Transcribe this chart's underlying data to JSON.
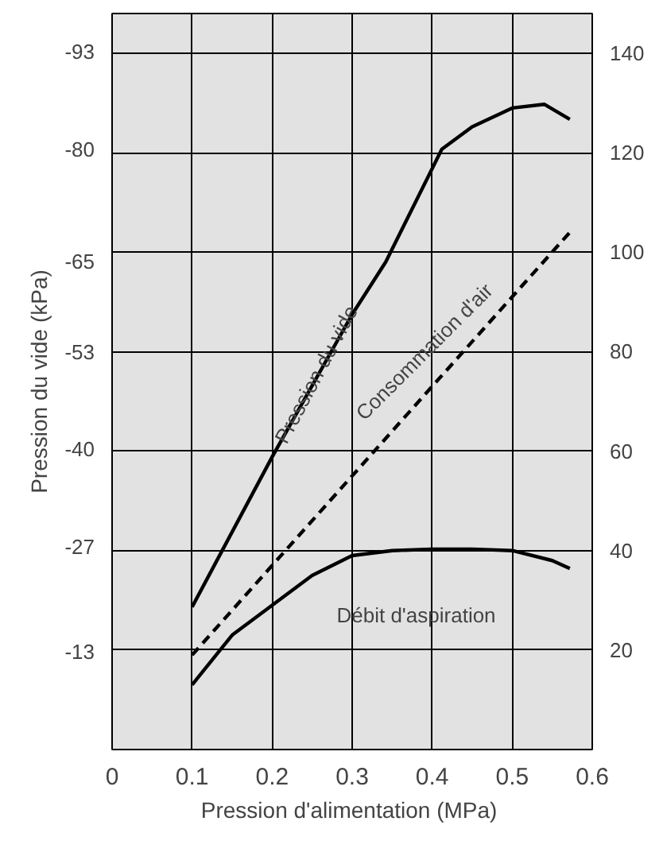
{
  "chart_data": {
    "type": "line",
    "xlabel": "Pression d'alimentation  (MPa)",
    "ylabel": "Pression du vide (kPa)",
    "xlim": [
      0,
      0.6
    ],
    "xticks": [
      0,
      0.1,
      0.2,
      0.3,
      0.4,
      0.5,
      0.6
    ],
    "ylim": [
      0,
      -98.1
    ],
    "yticks": [
      -13,
      -27,
      -40,
      -53,
      -65,
      -80,
      -93
    ],
    "y2lim": [
      0,
      148
    ],
    "y2ticks": [
      20,
      40,
      60,
      80,
      100,
      120,
      140
    ],
    "grid": true,
    "series": [
      {
        "color": "#000000",
        "line_style": "solid",
        "x": [
          0.1,
          0.2,
          0.3,
          0.342,
          0.412,
          0.45,
          0.5,
          0.54,
          0.572
        ],
        "values": [
          -19,
          -39,
          -58,
          -65,
          -80,
          -83,
          -85.5,
          -86,
          -84
        ]
      },
      {
        "color": "#000000",
        "line_style": "dashed",
        "axis": "y2",
        "x": [
          0.1,
          0.572
        ],
        "values": [
          19,
          104
        ]
      },
      {
        "color": "#000000",
        "line_style": "solid",
        "axis": "y2",
        "x": [
          0.1,
          0.15,
          0.2,
          0.25,
          0.3,
          0.35,
          0.4,
          0.45,
          0.5,
          0.55,
          0.572
        ],
        "values": [
          13,
          23,
          29,
          35,
          39,
          40,
          40.3,
          40.3,
          40,
          38,
          36.4
        ]
      }
    ],
    "annotations": [
      {
        "text": "Pression du vide",
        "x": 0.255,
        "y": -50
      },
      "Consommation d'air",
      "Débit d'aspiration"
    ]
  }
}
